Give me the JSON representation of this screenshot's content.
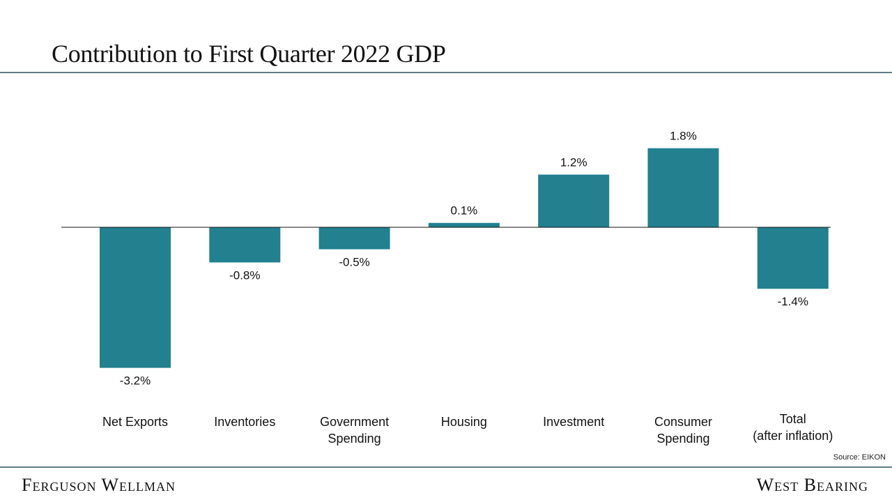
{
  "page": {
    "title": "Contribution to First Quarter 2022 GDP",
    "source": "Source: EIKON",
    "footer_left": "Ferguson Wellman",
    "footer_right": "West Bearing"
  },
  "chart_data": {
    "type": "bar",
    "title": "Contribution to First Quarter 2022 GDP",
    "xlabel": "",
    "ylabel": "",
    "categories": [
      [
        "Net Exports"
      ],
      [
        "Inventories"
      ],
      [
        "Government",
        "Spending"
      ],
      [
        "Housing"
      ],
      [
        "Investment"
      ],
      [
        "Consumer",
        "Spending"
      ],
      [
        "Total",
        "(after inflation)"
      ]
    ],
    "values": [
      -3.2,
      -0.8,
      -0.5,
      0.1,
      1.2,
      1.8,
      -1.4
    ],
    "value_labels": [
      "-3.2%",
      "-0.8%",
      "-0.5%",
      "0.1%",
      "1.2%",
      "1.8%",
      "-1.4%"
    ],
    "ylim": [
      -3.2,
      1.8
    ],
    "grid": false,
    "bar_color": "#22808f",
    "zero_line_color": "#111111"
  }
}
